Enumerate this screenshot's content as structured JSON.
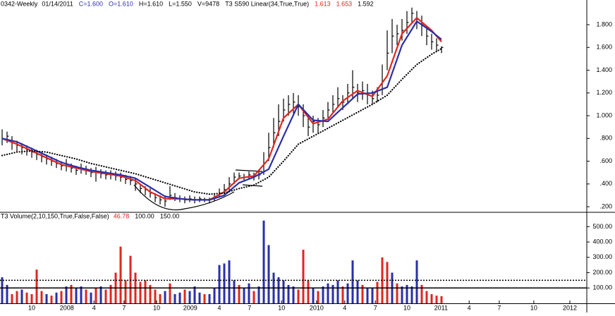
{
  "chart_data": [
    {
      "type": "ohlc",
      "header": [
        "0342-Weekly",
        "01/14/2011",
        "C=1.600",
        "O=1.610",
        "H=1.610",
        "L=1.550",
        "V=9478",
        "T3 S590 Linear(34,True,True)",
        "1.613",
        "1.653",
        "1.592"
      ],
      "header_colors": [
        "#000000",
        "#000000",
        "#2a2fa8",
        "#2a2fa8",
        "#000000",
        "#000000",
        "#000000",
        "#000000",
        "#e0261f",
        "#e0261f",
        "#000000"
      ],
      "bar_color": "#000000",
      "xlim": [
        -0.43,
        118.43
      ],
      "ylim": [
        0.157,
        2.017
      ],
      "yticks": [
        {
          "value": 0.2,
          "label": ".200"
        },
        {
          "value": 0.4,
          "label": ".400"
        },
        {
          "value": 0.6,
          "label": ".600"
        },
        {
          "value": 0.8,
          "label": ".800"
        },
        {
          "value": 1.0,
          "label": "1.000"
        },
        {
          "value": 1.2,
          "label": "1.200"
        },
        {
          "value": 1.4,
          "label": "1.400"
        },
        {
          "value": 1.6,
          "label": "1.600"
        },
        {
          "value": 1.8,
          "label": "1.800"
        }
      ],
      "high": [
        0.88,
        0.86,
        0.82,
        0.78,
        0.76,
        0.74,
        0.72,
        0.7,
        0.68,
        0.66,
        0.64,
        0.62,
        0.6,
        0.62,
        0.58,
        0.56,
        0.58,
        0.56,
        0.54,
        0.55,
        0.53,
        0.52,
        0.52,
        0.51,
        0.5,
        0.48,
        0.47,
        0.45,
        0.4,
        0.38,
        0.36,
        0.32,
        0.3,
        0.3,
        0.38,
        0.32,
        0.3,
        0.29,
        0.3,
        0.29,
        0.29,
        0.28,
        0.28,
        0.31,
        0.36,
        0.4,
        0.46,
        0.5,
        0.5,
        0.49,
        0.51,
        0.5,
        0.52,
        0.68,
        0.85,
        0.98,
        1.1,
        1.15,
        1.18,
        1.2,
        1.18,
        1.1,
        1.0,
        1.0,
        0.98,
        1.05,
        1.12,
        1.18,
        1.25,
        1.18,
        1.28,
        1.4,
        1.28,
        1.3,
        1.28,
        1.22,
        1.25,
        1.45,
        1.75,
        1.85,
        1.8,
        1.85,
        1.92,
        1.95,
        1.92,
        1.88,
        1.78,
        1.72,
        1.68,
        1.61
      ],
      "low": [
        0.74,
        0.76,
        0.7,
        0.68,
        0.66,
        0.65,
        0.63,
        0.61,
        0.59,
        0.57,
        0.56,
        0.54,
        0.52,
        0.51,
        0.5,
        0.48,
        0.49,
        0.48,
        0.46,
        0.42,
        0.45,
        0.44,
        0.44,
        0.43,
        0.42,
        0.4,
        0.39,
        0.34,
        0.32,
        0.3,
        0.28,
        0.24,
        0.22,
        0.2,
        0.26,
        0.25,
        0.24,
        0.23,
        0.24,
        0.23,
        0.24,
        0.24,
        0.23,
        0.25,
        0.28,
        0.31,
        0.34,
        0.4,
        0.44,
        0.42,
        0.44,
        0.43,
        0.44,
        0.48,
        0.6,
        0.72,
        0.82,
        0.95,
        1.0,
        1.02,
        1.0,
        0.9,
        0.82,
        0.85,
        0.84,
        0.9,
        0.98,
        1.02,
        1.08,
        1.05,
        1.1,
        1.15,
        1.12,
        1.14,
        1.1,
        1.1,
        1.12,
        1.18,
        1.4,
        1.55,
        1.62,
        1.66,
        1.72,
        1.82,
        1.76,
        1.7,
        1.62,
        1.58,
        1.56,
        1.55
      ],
      "close": [
        0.8,
        0.82,
        0.76,
        0.74,
        0.72,
        0.7,
        0.68,
        0.66,
        0.64,
        0.62,
        0.6,
        0.58,
        0.56,
        0.56,
        0.54,
        0.52,
        0.53,
        0.52,
        0.5,
        0.5,
        0.49,
        0.48,
        0.48,
        0.47,
        0.46,
        0.44,
        0.43,
        0.4,
        0.36,
        0.35,
        0.32,
        0.28,
        0.26,
        0.25,
        0.3,
        0.28,
        0.27,
        0.26,
        0.27,
        0.26,
        0.27,
        0.26,
        0.26,
        0.28,
        0.32,
        0.35,
        0.4,
        0.46,
        0.47,
        0.46,
        0.48,
        0.47,
        0.48,
        0.58,
        0.72,
        0.85,
        0.95,
        1.05,
        1.1,
        1.12,
        1.08,
        1.0,
        0.9,
        0.95,
        0.92,
        0.98,
        1.05,
        1.1,
        1.15,
        1.12,
        1.2,
        1.25,
        1.2,
        1.22,
        1.18,
        1.15,
        1.18,
        1.3,
        1.55,
        1.7,
        1.72,
        1.75,
        1.82,
        1.9,
        1.85,
        1.8,
        1.7,
        1.65,
        1.62,
        1.6
      ],
      "line_x": [
        0,
        3,
        6,
        9,
        12,
        15,
        18,
        21,
        24,
        27,
        30,
        33,
        36,
        39,
        42,
        45,
        48,
        51,
        54,
        57,
        60,
        63,
        66,
        69,
        72,
        75,
        78,
        81,
        84,
        87,
        89
      ],
      "lines": [
        {
          "color": "#e0261f",
          "dashed": false,
          "values": [
            0.8,
            0.75,
            0.69,
            0.63,
            0.57,
            0.54,
            0.51,
            0.49,
            0.47,
            0.43,
            0.33,
            0.27,
            0.27,
            0.26,
            0.26,
            0.33,
            0.45,
            0.47,
            0.62,
            0.98,
            1.1,
            0.93,
            0.97,
            1.13,
            1.22,
            1.17,
            1.35,
            1.72,
            1.86,
            1.75,
            1.65
          ]
        },
        {
          "color": "#2a2fa8",
          "dashed": false,
          "values": [
            0.8,
            0.77,
            0.71,
            0.65,
            0.59,
            0.55,
            0.52,
            0.5,
            0.48,
            0.45,
            0.37,
            0.29,
            0.27,
            0.26,
            0.26,
            0.3,
            0.41,
            0.46,
            0.53,
            0.82,
            1.1,
            0.96,
            0.95,
            1.07,
            1.19,
            1.2,
            1.25,
            1.62,
            1.83,
            1.74,
            1.67
          ]
        },
        {
          "color": "#000000",
          "dashed": true,
          "values": [
            0.65,
            0.68,
            0.69,
            0.68,
            0.65,
            0.62,
            0.58,
            0.55,
            0.52,
            0.49,
            0.45,
            0.41,
            0.37,
            0.33,
            0.31,
            0.32,
            0.36,
            0.39,
            0.46,
            0.6,
            0.75,
            0.82,
            0.89,
            0.96,
            1.03,
            1.1,
            1.18,
            1.32,
            1.45,
            1.54,
            1.59
          ]
        }
      ]
    },
    {
      "type": "bar",
      "header": [
        "T3 Volume(2,10,150,True,False,False)",
        "46.78",
        "100.00",
        "150.00"
      ],
      "header_colors": [
        "#000000",
        "#e0261f",
        "#000000",
        "#000000"
      ],
      "up_color": "#2a2fa8",
      "down_color": "#e0261f",
      "xlim": [
        -0.43,
        118.43
      ],
      "ylim": [
        0,
        580
      ],
      "yticks": [
        {
          "value": 100,
          "label": "100.00"
        },
        {
          "value": 200,
          "label": "200.00"
        },
        {
          "value": 300,
          "label": "300.00"
        },
        {
          "value": 400,
          "label": "400.00"
        },
        {
          "value": 500,
          "label": "500.00"
        }
      ],
      "ref_lines": [
        {
          "value": 100,
          "dashed": false
        },
        {
          "value": 150,
          "dashed": true
        }
      ],
      "xticks": [
        {
          "value": 6,
          "label": "10"
        },
        {
          "value": 13.1,
          "label": "2008"
        },
        {
          "value": 18.6,
          "label": "4"
        },
        {
          "value": 24.7,
          "label": "7"
        },
        {
          "value": 31.3,
          "label": "10"
        },
        {
          "value": 38.1,
          "label": "2009"
        },
        {
          "value": 44,
          "label": "4"
        },
        {
          "value": 50.1,
          "label": "7"
        },
        {
          "value": 56.6,
          "label": "10"
        },
        {
          "value": 63.7,
          "label": "2010"
        },
        {
          "value": 69.4,
          "label": "4"
        },
        {
          "value": 75.6,
          "label": "7"
        },
        {
          "value": 82,
          "label": "10"
        },
        {
          "value": 88.9,
          "label": "2011"
        },
        {
          "value": 94.6,
          "label": "4"
        },
        {
          "value": 100.7,
          "label": "7"
        },
        {
          "value": 107.7,
          "label": "10"
        },
        {
          "value": 115,
          "label": "2012"
        }
      ],
      "values": [
        170,
        120,
        60,
        80,
        90,
        70,
        60,
        220,
        80,
        60,
        50,
        70,
        80,
        110,
        120,
        100,
        110,
        90,
        70,
        100,
        110,
        90,
        120,
        200,
        370,
        150,
        310,
        200,
        140,
        150,
        120,
        90,
        60,
        80,
        130,
        60,
        70,
        90,
        80,
        110,
        70,
        60,
        60,
        100,
        250,
        260,
        280,
        150,
        120,
        100,
        130,
        80,
        110,
        540,
        380,
        200,
        170,
        150,
        120,
        110,
        90,
        350,
        150,
        100,
        80,
        110,
        130,
        120,
        150,
        110,
        130,
        280,
        150,
        120,
        100,
        100,
        140,
        300,
        270,
        200,
        130,
        110,
        120,
        110,
        280,
        120,
        80,
        60,
        50,
        46.78
      ],
      "up": [
        true,
        true,
        false,
        false,
        true,
        false,
        false,
        false,
        false,
        true,
        false,
        true,
        false,
        true,
        false,
        true,
        true,
        false,
        true,
        false,
        true,
        false,
        false,
        false,
        false,
        false,
        false,
        false,
        false,
        false,
        false,
        false,
        false,
        true,
        false,
        true,
        true,
        false,
        true,
        true,
        true,
        false,
        true,
        true,
        true,
        true,
        true,
        true,
        false,
        true,
        true,
        false,
        true,
        true,
        true,
        true,
        true,
        true,
        true,
        true,
        false,
        false,
        false,
        true,
        false,
        true,
        true,
        true,
        true,
        false,
        true,
        true,
        true,
        false,
        true,
        true,
        false,
        false,
        false,
        true,
        false,
        true,
        true,
        true,
        true,
        false,
        false,
        false,
        false,
        false
      ]
    }
  ]
}
